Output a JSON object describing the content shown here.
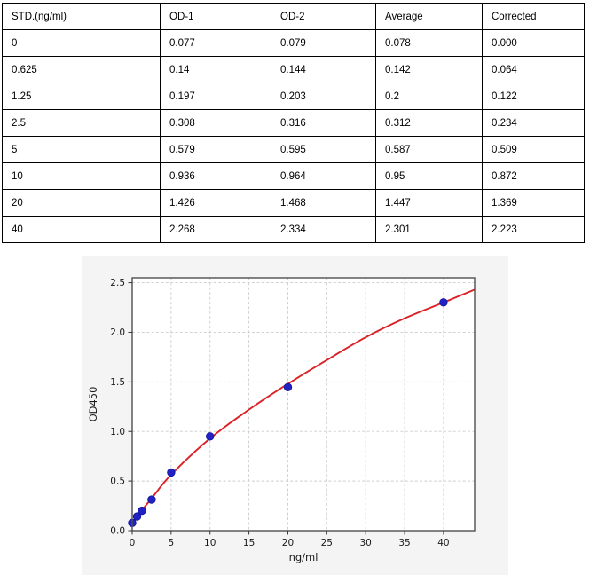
{
  "table": {
    "headers": [
      "STD.(ng/ml)",
      "OD-1",
      "OD-2",
      "Average",
      "Corrected"
    ],
    "rows": [
      [
        "0",
        "0.077",
        "0.079",
        "0.078",
        "0.000"
      ],
      [
        "0.625",
        "0.14",
        "0.144",
        "0.142",
        "0.064"
      ],
      [
        "1.25",
        "0.197",
        "0.203",
        "0.2",
        "0.122"
      ],
      [
        "2.5",
        "0.308",
        "0.316",
        "0.312",
        "0.234"
      ],
      [
        "5",
        "0.579",
        "0.595",
        "0.587",
        "0.509"
      ],
      [
        "10",
        "0.936",
        "0.964",
        "0.95",
        "0.872"
      ],
      [
        "20",
        "1.426",
        "1.468",
        "1.447",
        "1.369"
      ],
      [
        "40",
        "2.268",
        "2.334",
        "2.301",
        "2.223"
      ]
    ]
  },
  "chart_data": {
    "type": "scatter",
    "title": "",
    "xlabel": "ng/ml",
    "ylabel": "OD450",
    "xlim": [
      0,
      44
    ],
    "ylim": [
      0,
      2.55
    ],
    "x_tick_values": [
      0,
      5,
      10,
      15,
      20,
      25,
      30,
      35,
      40
    ],
    "x_tick_labels": [
      "0",
      "5",
      "10",
      "15",
      "20",
      "25",
      "30",
      "35",
      "40"
    ],
    "y_tick_values": [
      0,
      0.5,
      1.0,
      1.5,
      2.0,
      2.5
    ],
    "y_tick_labels": [
      "0.0",
      "0.5",
      "1.0",
      "1.5",
      "2.0",
      "2.5"
    ],
    "grid": "dashed",
    "legend": "none",
    "series": [
      {
        "name": "standard-points",
        "type": "scatter",
        "color": "#2121c4",
        "edge_color": "#1414a0",
        "x": [
          0,
          0.625,
          1.25,
          2.5,
          5,
          10,
          20,
          40
        ],
        "y": [
          0.078,
          0.142,
          0.2,
          0.312,
          0.587,
          0.95,
          1.447,
          2.301
        ]
      },
      {
        "name": "fit-curve",
        "type": "line",
        "color": "#dc2126",
        "x": [
          0,
          0.625,
          1.25,
          2.5,
          5,
          10,
          15,
          20,
          25,
          30,
          35,
          40,
          44
        ],
        "y": [
          0.06,
          0.135,
          0.205,
          0.325,
          0.565,
          0.93,
          1.22,
          1.48,
          1.72,
          1.95,
          2.14,
          2.3,
          2.43
        ]
      }
    ],
    "colors": {
      "panel_bg": "#f4f4f4",
      "plot_bg": "#ffffff",
      "grid": "#cccccc",
      "frame": "#4f4f4f",
      "tick_text": "#1a1a1a"
    }
  }
}
